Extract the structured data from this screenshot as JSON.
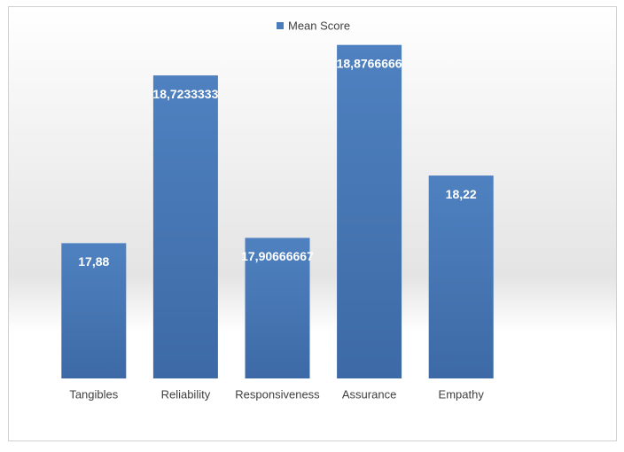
{
  "chart_data": {
    "type": "bar",
    "categories": [
      "Tangibles",
      "Reliability",
      "Responsiveness",
      "Assurance",
      "Empathy"
    ],
    "series": [
      {
        "name": "Mean Score",
        "color": "#4a7ebb",
        "values": [
          17.88,
          18.7233333,
          17.90666667,
          18.8766666,
          18.22
        ],
        "value_labels": [
          "17,88",
          "18,7233333",
          "17,90666667",
          "18,8766666",
          "18,22"
        ]
      }
    ],
    "ylim": [
      17.2,
      19
    ],
    "legend": "top"
  }
}
